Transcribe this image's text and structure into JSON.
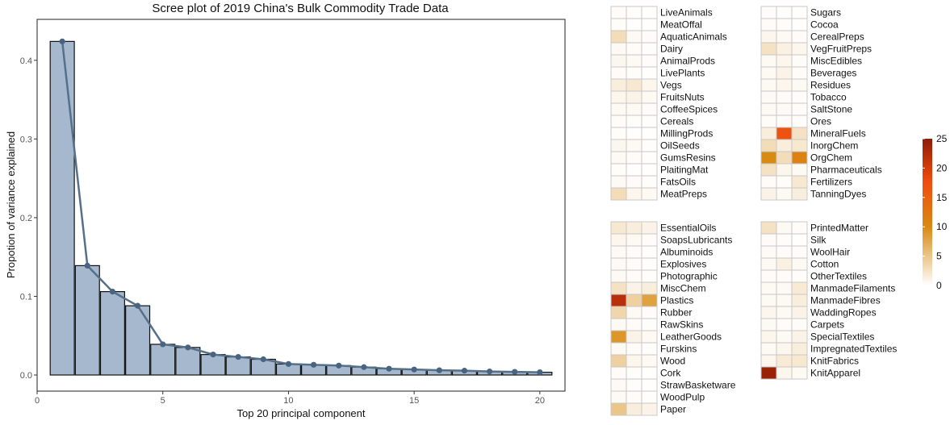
{
  "chart_data": [
    {
      "type": "bar",
      "title": "Scree plot of 2019 China's Bulk Commodity Trade Data",
      "xlabel": "Top 20 principal component",
      "ylabel": "Propotion of variance explained",
      "xlim": [
        0,
        21
      ],
      "ylim": [
        0,
        0.45
      ],
      "xticks": [
        0,
        5,
        10,
        15,
        20
      ],
      "yticks": [
        0.0,
        0.1,
        0.2,
        0.3,
        0.4
      ],
      "ytick_labels": [
        "0.0",
        "0.1",
        "0.2",
        "0.3",
        "0.4"
      ],
      "xtick_labels": [
        "0",
        "5",
        "10",
        "15",
        "20"
      ],
      "categories": [
        1,
        2,
        3,
        4,
        5,
        6,
        7,
        8,
        9,
        10,
        11,
        12,
        13,
        14,
        15,
        16,
        17,
        18,
        19,
        20
      ],
      "values": [
        0.424,
        0.139,
        0.106,
        0.088,
        0.039,
        0.035,
        0.026,
        0.023,
        0.02,
        0.014,
        0.013,
        0.012,
        0.01,
        0.008,
        0.007,
        0.006,
        0.0055,
        0.0045,
        0.004,
        0.0035
      ],
      "line_overlay": true,
      "bar_color": "#a5b8ce",
      "line_color": "#55708a",
      "point_color": "#4a6480",
      "grid": false
    },
    {
      "type": "heatmap",
      "columns": 3,
      "color_scale": {
        "min": 0,
        "max": 25,
        "ticks": [
          0,
          5,
          10,
          15,
          20,
          25
        ],
        "low": "#ffffff",
        "mid": "#d88a12",
        "high_mid": "#f04a10",
        "high": "#8c1d06"
      },
      "legend_placement": "right",
      "panels": [
        {
          "rows": [
            {
              "label": "LiveAnimals",
              "values": [
                0.3,
                0.2,
                0.1
              ]
            },
            {
              "label": "MeatOffal",
              "values": [
                0.2,
                0.1,
                0.1
              ]
            },
            {
              "label": "AquaticAnimals",
              "values": [
                3,
                0.5,
                0.3
              ]
            },
            {
              "label": "Dairy",
              "values": [
                0.5,
                0.3,
                0.2
              ]
            },
            {
              "label": "AnimalProds",
              "values": [
                0.7,
                0.5,
                0.3
              ]
            },
            {
              "label": "LivePlants",
              "values": [
                0.3,
                0.2,
                0.1
              ]
            },
            {
              "label": "Vegs",
              "values": [
                1.5,
                2,
                0.8
              ]
            },
            {
              "label": "FruitsNuts",
              "values": [
                0.8,
                1,
                0.5
              ]
            },
            {
              "label": "CoffeeSpices",
              "values": [
                0.5,
                0.5,
                0.3
              ]
            },
            {
              "label": "Cereals",
              "values": [
                0.3,
                0.2,
                0.2
              ]
            },
            {
              "label": "MillingProds",
              "values": [
                0.2,
                0.1,
                0.1
              ]
            },
            {
              "label": "OilSeeds",
              "values": [
                0.7,
                0.5,
                0.2
              ]
            },
            {
              "label": "GumsResins",
              "values": [
                0.5,
                0.3,
                0.2
              ]
            },
            {
              "label": "PlaitingMat",
              "values": [
                0.2,
                0.1,
                0.1
              ]
            },
            {
              "label": "FatsOils",
              "values": [
                0.4,
                0.3,
                0.2
              ]
            },
            {
              "label": "MeatPreps",
              "values": [
                3,
                0.8,
                0.5
              ]
            }
          ]
        },
        {
          "rows": [
            {
              "label": "Sugars",
              "values": [
                0.3,
                0.2,
                0.1
              ]
            },
            {
              "label": "Cocoa",
              "values": [
                0.3,
                0.2,
                0.1
              ]
            },
            {
              "label": "CerealPreps",
              "values": [
                0.8,
                0.5,
                0.3
              ]
            },
            {
              "label": "VegFruitPreps",
              "values": [
                2.5,
                1.2,
                0.8
              ]
            },
            {
              "label": "MiscEdibles",
              "values": [
                0.5,
                0.8,
                0.3
              ]
            },
            {
              "label": "Beverages",
              "values": [
                0.5,
                1,
                0.3
              ]
            },
            {
              "label": "Residues",
              "values": [
                0.5,
                0.8,
                0.5
              ]
            },
            {
              "label": "Tobacco",
              "values": [
                0.4,
                0.3,
                0.2
              ]
            },
            {
              "label": "SaltStone",
              "values": [
                0.5,
                0.4,
                0.3
              ]
            },
            {
              "label": "Ores",
              "values": [
                0.3,
                0.3,
                0.2
              ]
            },
            {
              "label": "MineralFuels",
              "values": [
                1.5,
                17,
                2.5
              ]
            },
            {
              "label": "InorgChem",
              "values": [
                3,
                1.5,
                2
              ]
            },
            {
              "label": "OrgChem",
              "values": [
                10,
                3,
                11
              ]
            },
            {
              "label": "Pharmaceuticals",
              "values": [
                2.5,
                0.8,
                0.5
              ]
            },
            {
              "label": "Fertilizers",
              "values": [
                0.3,
                0.2,
                2
              ]
            },
            {
              "label": "TanningDyes",
              "values": [
                1,
                0.5,
                1.5
              ]
            }
          ]
        },
        {
          "rows": [
            {
              "label": "EssentialOils",
              "values": [
                2,
                1.5,
                1
              ]
            },
            {
              "label": "SoapsLubricants",
              "values": [
                0.8,
                0.5,
                0.3
              ]
            },
            {
              "label": "Albuminoids",
              "values": [
                0.4,
                0.3,
                0.2
              ]
            },
            {
              "label": "Explosives",
              "values": [
                0.4,
                0.3,
                0.2
              ]
            },
            {
              "label": "Photographic",
              "values": [
                0.4,
                0.3,
                0.2
              ]
            },
            {
              "label": "MiscChem",
              "values": [
                2.5,
                1,
                1.5
              ]
            },
            {
              "label": "Plastics",
              "values": [
                22,
                4,
                8
              ]
            },
            {
              "label": "Rubber",
              "values": [
                3.5,
                0.5,
                0.3
              ]
            },
            {
              "label": "RawSkins",
              "values": [
                0.5,
                0.3,
                0.2
              ]
            },
            {
              "label": "LeatherGoods",
              "values": [
                9,
                1,
                0.5
              ]
            },
            {
              "label": "Furskins",
              "values": [
                0.5,
                0.3,
                0.2
              ]
            },
            {
              "label": "Wood",
              "values": [
                4,
                0.8,
                0.5
              ]
            },
            {
              "label": "Cork",
              "values": [
                0.3,
                0.2,
                0.1
              ]
            },
            {
              "label": "StrawBasketware",
              "values": [
                0.4,
                0.2,
                0.1
              ]
            },
            {
              "label": "WoodPulp",
              "values": [
                0.5,
                0.3,
                0.2
              ]
            },
            {
              "label": "Paper",
              "values": [
                5,
                1.5,
                1
              ]
            }
          ]
        },
        {
          "rows": [
            {
              "label": "PrintedMatter",
              "values": [
                2.5,
                0.5,
                0.3
              ]
            },
            {
              "label": "Silk",
              "values": [
                0.3,
                0.2,
                0.1
              ]
            },
            {
              "label": "WoolHair",
              "values": [
                0.4,
                0.3,
                0.3
              ]
            },
            {
              "label": "Cotton",
              "values": [
                0.5,
                1.2,
                0.5
              ]
            },
            {
              "label": "OtherTextiles",
              "values": [
                0.3,
                0.3,
                0.2
              ]
            },
            {
              "label": "ManmadeFilaments",
              "values": [
                0.5,
                0.5,
                1.8
              ]
            },
            {
              "label": "ManmadeFibres",
              "values": [
                0.5,
                0.5,
                1.5
              ]
            },
            {
              "label": "WaddingRopes",
              "values": [
                0.8,
                0.5,
                1
              ]
            },
            {
              "label": "Carpets",
              "values": [
                0.5,
                0.3,
                0.3
              ]
            },
            {
              "label": "SpecialTextiles",
              "values": [
                0.8,
                0.5,
                1
              ]
            },
            {
              "label": "ImpregnatedTextiles",
              "values": [
                0.5,
                0.8,
                1.5
              ]
            },
            {
              "label": "KnitFabrics",
              "values": [
                0.8,
                1.8,
                2
              ]
            },
            {
              "label": "KnitApparel",
              "values": [
                24,
                0.8,
                0.5
              ]
            }
          ]
        }
      ]
    }
  ]
}
